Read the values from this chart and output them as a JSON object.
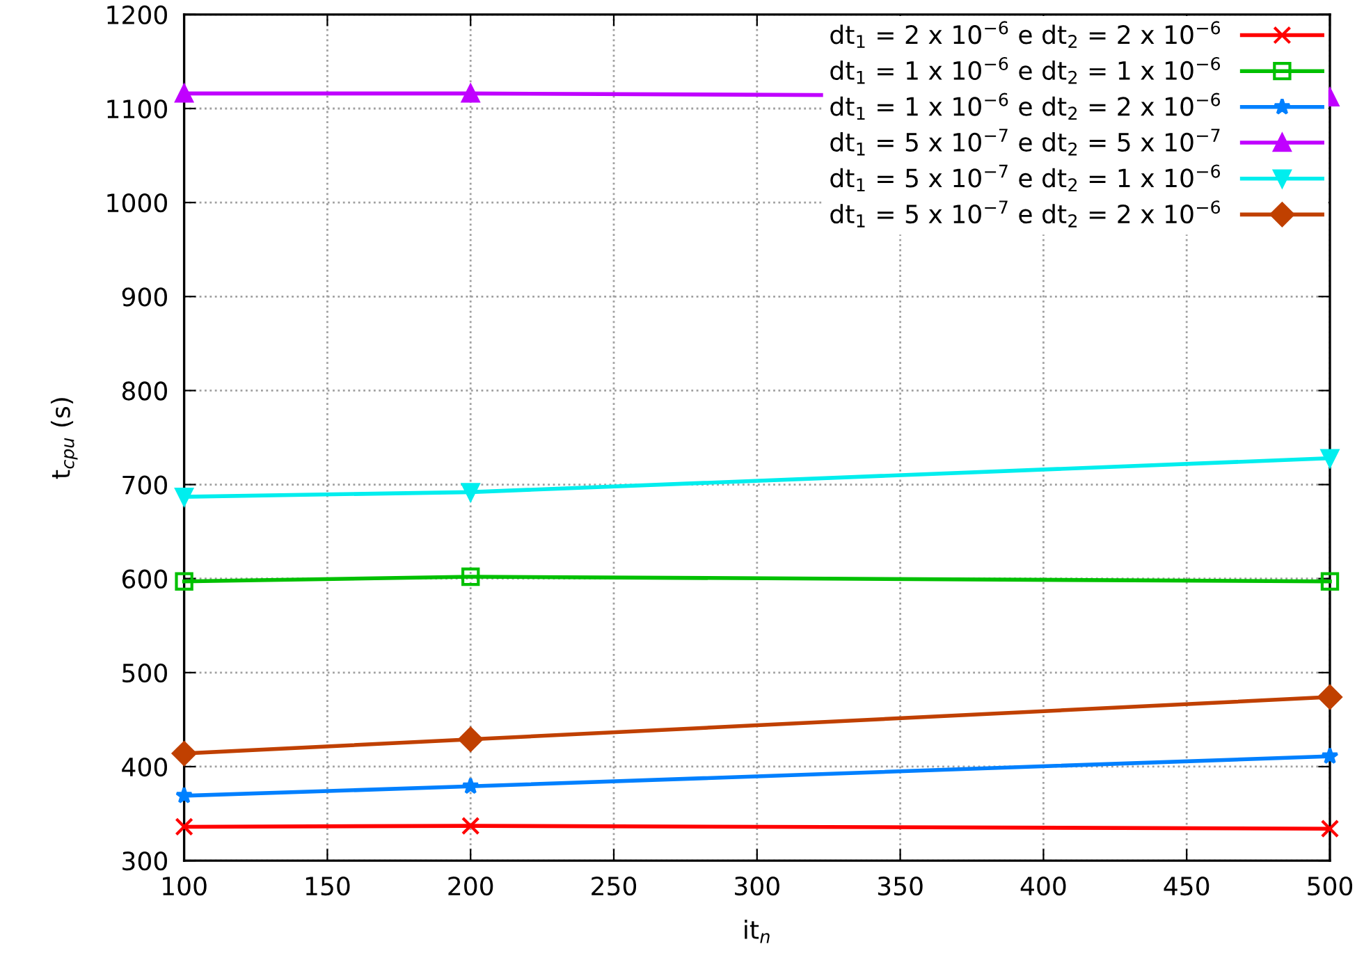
{
  "chart_data": {
    "type": "line",
    "xlabel": "it$_{n}$",
    "ylabel": "t$_{cpu}$ (s)",
    "x": [
      100,
      200,
      500
    ],
    "xlim": [
      100,
      500
    ],
    "xticks": [
      100,
      150,
      200,
      250,
      300,
      350,
      400,
      450,
      500
    ],
    "ylim": [
      300,
      1200
    ],
    "yticks": [
      300,
      400,
      500,
      600,
      700,
      800,
      900,
      1000,
      1100,
      1200
    ],
    "grid": true,
    "legend": "top right",
    "line_style": "solid",
    "series": [
      {
        "name": "dt$_{1}$ = 2 x 10$^{−6}$ e dt$_{2}$ = 2 x 10$^{−6}$",
        "color": "#ff0000",
        "marker": "cross",
        "values": [
          336,
          337,
          334
        ]
      },
      {
        "name": "dt$_{1}$ = 1 x 10$^{−6}$ e dt$_{2}$ = 1 x 10$^{−6}$",
        "color": "#00c000",
        "marker": "square",
        "values": [
          597,
          602,
          597
        ]
      },
      {
        "name": "dt$_{1}$ = 1 x 10$^{−6}$ e dt$_{2}$ = 2 x 10$^{−6}$",
        "color": "#0080ff",
        "marker": "star",
        "values": [
          369,
          379,
          411
        ]
      },
      {
        "name": "dt$_{1}$ = 5 x 10$^{−7}$ e dt$_{2}$ = 5 x 10$^{−7}$",
        "color": "#c000ff",
        "marker": "triangle",
        "values": [
          1116,
          1116,
          1112
        ]
      },
      {
        "name": "dt$_{1}$ = 5 x 10$^{−7}$ e dt$_{2}$ = 1 x 10$^{−6}$",
        "color": "#00eeee",
        "marker": "triangle_down",
        "values": [
          687,
          692,
          728
        ]
      },
      {
        "name": "dt$_{1}$ = 5 x 10$^{−7}$ e dt$_{2}$ = 2 x 10$^{−6}$",
        "color": "#c04000",
        "marker": "diamond",
        "values": [
          414,
          429,
          474
        ]
      }
    ]
  }
}
